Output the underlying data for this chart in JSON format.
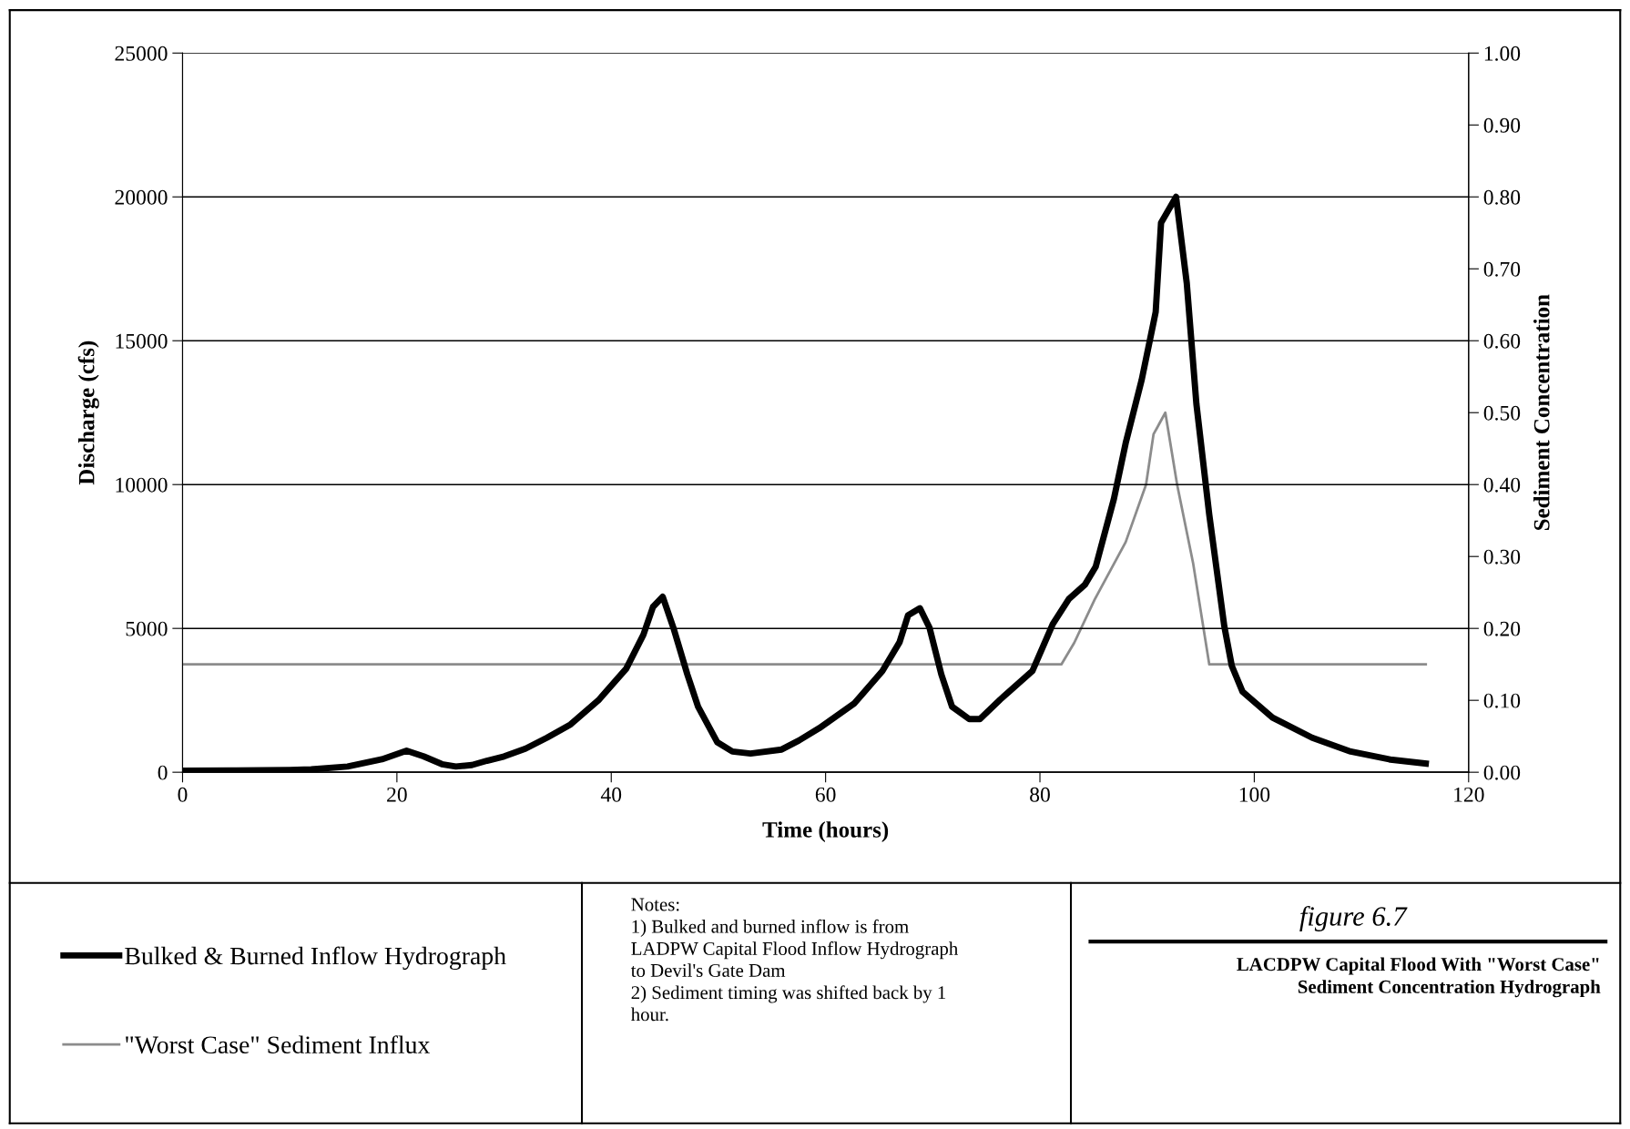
{
  "chart_data": {
    "type": "line",
    "title": "LACDPW Capital Flood With \"Worst Case\"\nSediment Concentration Hydrograph",
    "subtitle": "figure 6.7",
    "xlabel": "Time (hours)",
    "ylabel": "Discharge (cfs)",
    "y2label": "Sediment Concentration",
    "annotations": [
      "Notes:\n1) Bulked and burned inflow is from\nLADPW Capital Flood Inflow Hydrograph\nto Devil's Gate Dam\n2) Sediment timing was shifted back by 1\nhour."
    ],
    "series": [
      {
        "name": "Bulked & Burned Inflow Hydrograph",
        "color": "#000000",
        "x": [
          0,
          5,
          10,
          12,
          15.4,
          18.6,
          20.9,
          22.5,
          24.2,
          25.5,
          27,
          28.4,
          30,
          32,
          34,
          36.2,
          38.8,
          41.4,
          43,
          43.9,
          44.8,
          45.8,
          47.1,
          48.1,
          49.9,
          51.3,
          53,
          55.9,
          57.5,
          59.4,
          62.7,
          65.3,
          66.9,
          67.7,
          68.8,
          69.7,
          70.8,
          71.8,
          73.4,
          74.4,
          76.3,
          79.3,
          81.2,
          82.7,
          84.2,
          85.2,
          86.9,
          88,
          89.5,
          90.8,
          91.3,
          92.7,
          93.7,
          94.6,
          95.8,
          97.2,
          97.9,
          98.9,
          101.7,
          105.4,
          109,
          112.7,
          116
        ],
        "values": [
          50,
          60,
          80,
          100,
          200,
          450,
          750,
          550,
          280,
          200,
          250,
          400,
          550,
          820,
          1200,
          1660,
          2500,
          3600,
          4780,
          5750,
          6100,
          5020,
          3400,
          2280,
          1040,
          720,
          650,
          790,
          1100,
          1530,
          2400,
          3520,
          4520,
          5460,
          5700,
          5020,
          3400,
          2280,
          1850,
          1850,
          2530,
          3520,
          5150,
          6020,
          6520,
          7140,
          9500,
          11440,
          13650,
          16000,
          19100,
          20000,
          17000,
          12800,
          8950,
          5080,
          3700,
          2800,
          1900,
          1200,
          720,
          440,
          300
        ]
      },
      {
        "name": "\"Worst Case\" Sediment Influx",
        "color": "#8c8c8c",
        "axis": "y2",
        "x": [
          0,
          82,
          83.2,
          85.1,
          88,
          89.9,
          90.6,
          91.7,
          92.8,
          94.3,
          95.8,
          116
        ],
        "values": [
          0.15,
          0.15,
          0.18,
          0.24,
          0.32,
          0.4,
          0.47,
          0.5,
          0.4,
          0.29,
          0.15,
          0.15
        ]
      }
    ],
    "xlim": [
      0,
      120
    ],
    "xticks": [
      0,
      20,
      40,
      60,
      80,
      100,
      120
    ],
    "ylim": [
      0,
      25000
    ],
    "yticks": [
      0,
      5000,
      10000,
      15000,
      20000,
      25000
    ],
    "y2lim": [
      0,
      1
    ],
    "y2ticks": [
      {
        "value": 0,
        "label": "0.00"
      },
      {
        "value": 0.1,
        "label": "0.10"
      },
      {
        "value": 0.2,
        "label": "0.20"
      },
      {
        "value": 0.3,
        "label": "0.30"
      },
      {
        "value": 0.4,
        "label": "0.40"
      },
      {
        "value": 0.5,
        "label": "0.50"
      },
      {
        "value": 0.6,
        "label": "0.60"
      },
      {
        "value": 0.7,
        "label": "0.70"
      },
      {
        "value": 0.8,
        "label": "0.80"
      },
      {
        "value": 0.9,
        "label": "0.90"
      },
      {
        "value": 1,
        "label": "1.00"
      }
    ],
    "grid": "y",
    "legend": "bottom left",
    "marker": "none",
    "line_style": "solid"
  }
}
